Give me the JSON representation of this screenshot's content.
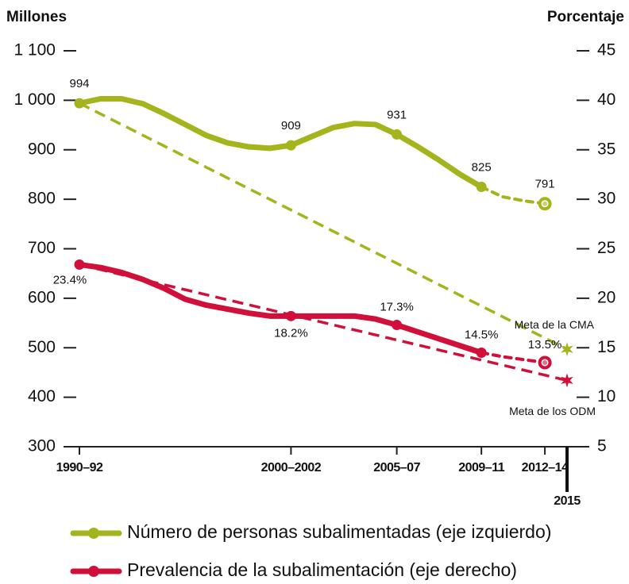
{
  "chart_data": {
    "type": "line",
    "y_label": "Millones",
    "y2_label": "Porcentaje",
    "categories": [
      "1990–92",
      null,
      null,
      null,
      null,
      null,
      null,
      null,
      null,
      null,
      "2000–2002",
      null,
      null,
      null,
      null,
      "2005–07",
      null,
      null,
      null,
      "2009–11",
      null,
      null,
      "2012–14"
    ],
    "target_category": "2015",
    "series": [
      {
        "name": "Número de personas subalimentadas (eje izquierdo)",
        "color": "#a3b41c",
        "axis": "y",
        "values": [
          994,
          1003,
          1003,
          993,
          973,
          951,
          929,
          914,
          906,
          903,
          909,
          927,
          945,
          953,
          951,
          931,
          906,
          879,
          850,
          825,
          805,
          797,
          791
        ]
      },
      {
        "name": "Prevalencia de la subalimentación (eje derecho)",
        "color": "#d0103a",
        "axis": "y2",
        "values": [
          23.4,
          23.1,
          22.6,
          21.9,
          21.0,
          19.9,
          19.3,
          18.9,
          18.5,
          18.2,
          18.2,
          18.2,
          18.2,
          18.2,
          17.9,
          17.3,
          16.6,
          15.9,
          15.2,
          14.5,
          14.1,
          13.8,
          13.5
        ],
        "value_labels": [
          "23.4%",
          null,
          null,
          null,
          null,
          null,
          null,
          null,
          null,
          null,
          "18.2%",
          null,
          null,
          null,
          null,
          "17.3%",
          null,
          null,
          null,
          "14.5%",
          null,
          null,
          "13.5%"
        ]
      }
    ],
    "targets": [
      {
        "name": "Meta de la CMA",
        "value": 497,
        "axis": "y",
        "color": "#a3b41c"
      },
      {
        "name": "Meta de los ODM",
        "value": 11.7,
        "axis": "y2",
        "color": "#d0103a"
      }
    ],
    "ylim": [
      300,
      1100
    ],
    "yticks": [
      300,
      400,
      500,
      600,
      700,
      800,
      900,
      {
        "value": 1000,
        "label": "1 000"
      },
      {
        "value": 1100,
        "label": "1 100"
      }
    ],
    "y2lim": [
      5,
      45
    ],
    "y2ticks": [
      5,
      10,
      15,
      20,
      25,
      30,
      35,
      40,
      45
    ]
  }
}
